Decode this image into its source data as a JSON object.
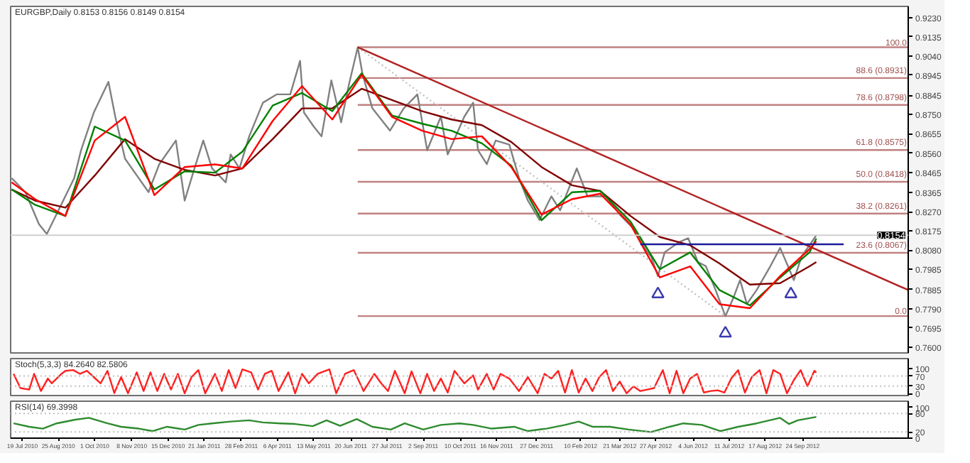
{
  "chart_data": [
    {
      "type": "line",
      "title": "EURGBP,Daily  0.8153 0.8156 0.8149 0.8154",
      "tick_labels": "y",
      "xlim": [
        "2010-07-07",
        "2013-01-10"
      ],
      "ylim": [
        0.7572,
        0.9285
      ],
      "yticks": [
        {
          "value": 0.923,
          "label": "0.9230"
        },
        {
          "value": 0.9135,
          "label": "0.9135"
        },
        {
          "value": 0.904,
          "label": "0.9040"
        },
        {
          "value": 0.8945,
          "label": "0.8945"
        },
        {
          "value": 0.8845,
          "label": "0.8845"
        },
        {
          "value": 0.875,
          "label": "0.8750"
        },
        {
          "value": 0.8655,
          "label": "0.8655"
        },
        {
          "value": 0.856,
          "label": "0.8560"
        },
        {
          "value": 0.8465,
          "label": "0.8465"
        },
        {
          "value": 0.8365,
          "label": "0.8365"
        },
        {
          "value": 0.827,
          "label": "0.8270"
        },
        {
          "value": 0.8175,
          "label": "0.8175"
        },
        {
          "value": 0.808,
          "label": "0.8080"
        },
        {
          "value": 0.7985,
          "label": "0.7985"
        },
        {
          "value": 0.7885,
          "label": "0.7885"
        },
        {
          "value": 0.779,
          "label": "0.7790"
        },
        {
          "value": 0.7695,
          "label": "0.7695"
        },
        {
          "value": 0.76,
          "label": "0.7600"
        }
      ],
      "ref_lines": [
        {
          "axis": "y",
          "value": 0.8154,
          "label": "0.8154",
          "color": "#d0d0d0"
        }
      ],
      "series": [
        {
          "name": "100.0",
          "color": "#c08080",
          "x": [
            "2011-06-27",
            "2013-01-10"
          ],
          "values": [
            0.9083,
            0.9083
          ]
        },
        {
          "name": "88.6 (0.8931)",
          "color": "#c08080",
          "x": [
            "2011-06-27",
            "2013-01-10"
          ],
          "values": [
            0.8931,
            0.8931
          ]
        },
        {
          "name": "78.6 (0.8798)",
          "color": "#c08080",
          "x": [
            "2011-06-27",
            "2013-01-10"
          ],
          "values": [
            0.8798,
            0.8798
          ]
        },
        {
          "name": "61.8 (0.8575)",
          "color": "#c08080",
          "x": [
            "2011-06-27",
            "2013-01-10"
          ],
          "values": [
            0.8575,
            0.8575
          ]
        },
        {
          "name": "50.0 (0.8418)",
          "color": "#c08080",
          "x": [
            "2011-06-27",
            "2013-01-10"
          ],
          "values": [
            0.8418,
            0.8418
          ]
        },
        {
          "name": "38.2 (0.8261)",
          "color": "#c08080",
          "x": [
            "2011-06-27",
            "2013-01-10"
          ],
          "values": [
            0.8261,
            0.8261
          ]
        },
        {
          "name": "23.6 (0.8067)",
          "color": "#c08080",
          "x": [
            "2011-06-27",
            "2013-01-10"
          ],
          "values": [
            0.8067,
            0.8067
          ]
        },
        {
          "name": "0.0",
          "color": "#c08080",
          "x": [
            "2011-06-27",
            "2013-01-10"
          ],
          "values": [
            0.7754,
            0.7754
          ]
        },
        {
          "color": "#c0c0c0",
          "line_style": "dotted",
          "x": [
            "2011-06-27",
            "2012-07-07"
          ],
          "values": [
            0.9083,
            0.7754
          ]
        },
        {
          "color": "#808080",
          "x": [
            "2010-07-08",
            "2010-07-22",
            "2010-08-05",
            "2010-08-13",
            "2010-08-27",
            "2010-09-10",
            "2010-09-17",
            "2010-09-30",
            "2010-10-15",
            "2010-10-22",
            "2010-11-01",
            "2010-11-15",
            "2010-11-25",
            "2010-12-06",
            "2010-12-23",
            "2011-01-01",
            "2011-01-11",
            "2011-01-20",
            "2011-01-29",
            "2011-02-12",
            "2011-02-17",
            "2011-02-26",
            "2011-03-08",
            "2011-03-22",
            "2011-04-05",
            "2011-04-19",
            "2011-04-29",
            "2011-05-03",
            "2011-05-13",
            "2011-05-21",
            "2011-05-31",
            "2011-06-10",
            "2011-06-18",
            "2011-06-27",
            "2011-07-02",
            "2011-07-12",
            "2011-07-30",
            "2011-08-13",
            "2011-08-27",
            "2011-09-06",
            "2011-09-20",
            "2011-09-27",
            "2011-10-14",
            "2011-10-23",
            "2011-10-28",
            "2011-11-06",
            "2011-11-15",
            "2011-11-29",
            "2011-12-09",
            "2011-12-18",
            "2011-12-30",
            "2012-01-11",
            "2012-01-20",
            "2012-02-06",
            "2012-02-17",
            "2012-03-07",
            "2012-03-21",
            "2012-04-04",
            "2012-04-18",
            "2012-04-22",
            "2012-04-29",
            "2012-05-06",
            "2012-05-20",
            "2012-05-30",
            "2012-06-09",
            "2012-06-17",
            "2012-06-27",
            "2012-07-07",
            "2012-07-15",
            "2012-07-22",
            "2012-07-29",
            "2012-08-08",
            "2012-08-22",
            "2012-09-01",
            "2012-09-09",
            "2012-09-15",
            "2012-09-23",
            "2012-10-03",
            "2012-10-08"
          ],
          "values": [
            0.8436,
            0.8367,
            0.8208,
            0.816,
            0.8298,
            0.8436,
            0.8574,
            0.876,
            0.8912,
            0.874,
            0.8532,
            0.8436,
            0.8367,
            0.8505,
            0.8622,
            0.8325,
            0.8484,
            0.8622,
            0.8484,
            0.8415,
            0.8553,
            0.8484,
            0.8643,
            0.8809,
            0.885,
            0.885,
            0.9016,
            0.876,
            0.8691,
            0.8643,
            0.8919,
            0.8712,
            0.8899,
            0.9083,
            0.8947,
            0.8781,
            0.8671,
            0.8781,
            0.885,
            0.8574,
            0.874,
            0.8553,
            0.874,
            0.8809,
            0.8574,
            0.8505,
            0.8622,
            0.8602,
            0.8436,
            0.8325,
            0.8229,
            0.8346,
            0.8277,
            0.8484,
            0.8346,
            0.8346,
            0.8256,
            0.8187,
            0.807,
            0.8049,
            0.7952,
            0.807,
            0.8118,
            0.8139,
            0.8021,
            0.8001,
            0.7883,
            0.7754,
            0.7842,
            0.7932,
            0.7814,
            0.7883,
            0.8001,
            0.8091,
            0.8001,
            0.7932,
            0.8049,
            0.8118,
            0.8154
          ]
        },
        {
          "color": "#800000",
          "x": [
            "2010-07-08",
            "2010-08-01",
            "2010-09-01",
            "2010-10-01",
            "2010-11-01",
            "2010-12-01",
            "2011-01-01",
            "2011-02-01",
            "2011-03-01",
            "2011-04-01",
            "2011-05-01",
            "2011-06-01",
            "2011-07-01",
            "2011-08-01",
            "2011-09-01",
            "2011-10-01",
            "2011-11-01",
            "2011-12-01",
            "2012-01-01",
            "2012-02-01",
            "2012-03-01",
            "2012-04-01",
            "2012-05-01",
            "2012-06-01",
            "2012-07-01",
            "2012-08-01",
            "2012-09-01",
            "2012-10-01",
            "2012-10-08"
          ],
          "values": [
            0.838,
            0.8325,
            0.829,
            0.8449,
            0.8629,
            0.8532,
            0.8477,
            0.8449,
            0.8484,
            0.8629,
            0.8781,
            0.8781,
            0.8878,
            0.8822,
            0.8767,
            0.8726,
            0.8698,
            0.8615,
            0.8491,
            0.8401,
            0.8373,
            0.8249,
            0.8145,
            0.8104,
            0.8014,
            0.791,
            0.7917,
            0.8,
            0.8021
          ]
        },
        {
          "color": "#008000",
          "x": [
            "2010-07-08",
            "2010-08-01",
            "2010-09-01",
            "2010-10-01",
            "2010-11-01",
            "2010-12-01",
            "2011-01-01",
            "2011-02-01",
            "2011-03-01",
            "2011-04-01",
            "2011-05-01",
            "2011-06-01",
            "2011-07-01",
            "2011-08-01",
            "2011-09-01",
            "2011-10-01",
            "2011-11-01",
            "2011-12-01",
            "2012-01-01",
            "2012-02-01",
            "2012-03-01",
            "2012-04-01",
            "2012-05-01",
            "2012-06-01",
            "2012-07-01",
            "2012-08-01",
            "2012-09-01",
            "2012-10-01",
            "2012-10-08"
          ],
          "values": [
            0.838,
            0.8304,
            0.8249,
            0.8691,
            0.8622,
            0.838,
            0.847,
            0.8463,
            0.8567,
            0.8795,
            0.8857,
            0.8767,
            0.8954,
            0.8746,
            0.8705,
            0.867,
            0.8608,
            0.8498,
            0.8228,
            0.8366,
            0.8373,
            0.8221,
            0.7986,
            0.8069,
            0.7883,
            0.7807,
            0.7945,
            0.8069,
            0.8138
          ]
        },
        {
          "color": "#ff0000",
          "x": [
            "2010-07-08",
            "2010-08-01",
            "2010-09-01",
            "2010-10-01",
            "2010-11-01",
            "2010-12-01",
            "2011-01-01",
            "2011-02-01",
            "2011-03-01",
            "2011-04-01",
            "2011-05-01",
            "2011-06-01",
            "2011-07-01",
            "2011-08-01",
            "2011-09-01",
            "2011-10-01",
            "2011-11-01",
            "2011-12-01",
            "2012-01-01",
            "2012-02-01",
            "2012-03-01",
            "2012-04-01",
            "2012-05-01",
            "2012-06-01",
            "2012-07-01",
            "2012-08-01",
            "2012-09-01",
            "2012-10-01",
            "2012-10-08"
          ],
          "values": [
            0.8415,
            0.8332,
            0.8249,
            0.8622,
            0.8739,
            0.8352,
            0.8491,
            0.8504,
            0.8484,
            0.8719,
            0.8891,
            0.8726,
            0.8947,
            0.8739,
            0.867,
            0.8629,
            0.8643,
            0.8491,
            0.8256,
            0.8332,
            0.8359,
            0.8207,
            0.7945,
            0.8,
            0.7813,
            0.7793,
            0.7952,
            0.8085,
            0.8124
          ]
        },
        {
          "color": "#b22222",
          "x": [
            "2011-06-27",
            "2013-01-10"
          ],
          "values": [
            0.9083,
            0.7883
          ]
        },
        {
          "color": "#1a1a9a",
          "x": [
            "2012-04-11",
            "2012-11-05"
          ],
          "values": [
            0.8109,
            0.8109
          ]
        },
        {
          "type": "scatter",
          "marker": "triangle",
          "color": "#3a3ab0",
          "x": [
            "2012-04-29",
            "2012-07-07",
            "2012-09-12"
          ],
          "values": [
            0.7863,
            0.7669,
            0.7863
          ]
        }
      ]
    },
    {
      "type": "line",
      "title": "Stoch(5,3,3) 84.2640 82.5806",
      "tick_labels": "y",
      "xlim": [
        "2010-07-07",
        "2013-01-10"
      ],
      "ylim": [
        -8,
        140
      ],
      "yticks": [
        100,
        70,
        30,
        0
      ],
      "ref_lines": [
        {
          "axis": "y",
          "value": 70,
          "color": "#c0c0c0",
          "line_style": "dotted"
        },
        {
          "axis": "y",
          "value": 30,
          "color": "#c0c0c0",
          "line_style": "dotted"
        }
      ],
      "series": [
        {
          "color": "#ff2020",
          "x": [
            "2010-07-10",
            "2010-07-17",
            "2010-07-26",
            "2010-07-31",
            "2010-08-07",
            "2010-08-14",
            "2010-08-18",
            "2010-08-28",
            "2010-09-01",
            "2010-09-09",
            "2010-09-16",
            "2010-09-23",
            "2010-09-30",
            "2010-10-07",
            "2010-10-14",
            "2010-10-21",
            "2010-10-28",
            "2010-11-04",
            "2010-11-13",
            "2010-11-20",
            "2010-11-27",
            "2010-12-04",
            "2010-12-11",
            "2010-12-18",
            "2010-12-25",
            "2011-01-01",
            "2011-01-08",
            "2011-01-15",
            "2011-01-22",
            "2011-02-01",
            "2011-02-08",
            "2011-02-15",
            "2011-02-22",
            "2011-03-01",
            "2011-03-10",
            "2011-03-17",
            "2011-03-24",
            "2011-03-31",
            "2011-04-07",
            "2011-04-17",
            "2011-04-24",
            "2011-05-01",
            "2011-05-08",
            "2011-05-17",
            "2011-05-29",
            "2011-06-05",
            "2011-06-14",
            "2011-06-23",
            "2011-07-03",
            "2011-07-14",
            "2011-07-21",
            "2011-07-28",
            "2011-08-04",
            "2011-08-14",
            "2011-08-21",
            "2011-08-30",
            "2011-09-06",
            "2011-09-13",
            "2011-09-20",
            "2011-09-27",
            "2011-10-04",
            "2011-10-14",
            "2011-10-23",
            "2011-10-28",
            "2011-11-06",
            "2011-11-13",
            "2011-11-20",
            "2011-11-29",
            "2011-12-09",
            "2011-12-18",
            "2011-12-28",
            "2012-01-04",
            "2012-01-11",
            "2012-01-18",
            "2012-01-25",
            "2012-02-01",
            "2012-02-08",
            "2012-02-15",
            "2012-02-22",
            "2012-02-29",
            "2012-03-07",
            "2012-03-14",
            "2012-03-21",
            "2012-03-28",
            "2012-04-04",
            "2012-04-11",
            "2012-04-18",
            "2012-04-25",
            "2012-05-04",
            "2012-05-11",
            "2012-05-18",
            "2012-05-25",
            "2012-06-01",
            "2012-06-08",
            "2012-06-15",
            "2012-06-22",
            "2012-06-29",
            "2012-07-06",
            "2012-07-13",
            "2012-07-20",
            "2012-07-27",
            "2012-08-03",
            "2012-08-11",
            "2012-08-18",
            "2012-08-25",
            "2012-09-01",
            "2012-09-08",
            "2012-09-15",
            "2012-09-22",
            "2012-09-29",
            "2012-10-06",
            "2012-10-08"
          ],
          "values": [
            79,
            22,
            16,
            79,
            10,
            60,
            41,
            79,
            91,
            94,
            79,
            91,
            66,
            41,
            91,
            2,
            66,
            1,
            85,
            10,
            85,
            10,
            79,
            16,
            79,
            1,
            66,
            94,
            1,
            79,
            10,
            94,
            22,
            97,
            85,
            16,
            79,
            91,
            10,
            85,
            1,
            79,
            41,
            79,
            97,
            1,
            79,
            94,
            10,
            79,
            41,
            10,
            91,
            1,
            89,
            1,
            79,
            10,
            60,
            4,
            91,
            41,
            73,
            16,
            79,
            16,
            79,
            60,
            10,
            66,
            1,
            79,
            60,
            91,
            4,
            94,
            4,
            60,
            10,
            66,
            94,
            10,
            48,
            1,
            29,
            10,
            16,
            22,
            94,
            1,
            91,
            1,
            60,
            79,
            4,
            10,
            13,
            4,
            60,
            94,
            4,
            66,
            94,
            1,
            94,
            79,
            1,
            54,
            94,
            29,
            91,
            84
          ]
        }
      ]
    },
    {
      "type": "line",
      "title": "RSI(14) 69.3998",
      "xlim": [
        "2010-07-07",
        "2013-01-10"
      ],
      "ylim": [
        0,
        120
      ],
      "yticks": [
        100,
        80,
        20,
        0
      ],
      "xticks": [
        {
          "value": "2010-07-19",
          "label": "19 Jul 2010"
        },
        {
          "value": "2010-08-25",
          "label": "25 Aug 2010"
        },
        {
          "value": "2010-10-01",
          "label": "1 Oct 2010"
        },
        {
          "value": "2010-11-08",
          "label": "8 Nov 2010"
        },
        {
          "value": "2010-12-15",
          "label": "15 Dec 2010"
        },
        {
          "value": "2011-01-21",
          "label": "21 Jan 2011"
        },
        {
          "value": "2011-02-28",
          "label": "28 Feb 2011"
        },
        {
          "value": "2011-04-06",
          "label": "6 Apr 2011"
        },
        {
          "value": "2011-05-13",
          "label": "13 May 2011"
        },
        {
          "value": "2011-06-20",
          "label": "20 Jun 2011"
        },
        {
          "value": "2011-07-27",
          "label": "27 Jul 2011"
        },
        {
          "value": "2011-09-02",
          "label": "2 Sep 2011"
        },
        {
          "value": "2011-10-10",
          "label": "10 Oct 2011"
        },
        {
          "value": "2011-11-16",
          "label": "16 Nov 2011"
        },
        {
          "value": "2011-12-27",
          "label": "27 Dec 2011"
        },
        {
          "value": "2012-02-10",
          "label": "10 Feb 2012"
        },
        {
          "value": "2012-03-21",
          "label": "21 Mar 2012"
        },
        {
          "value": "2012-04-27",
          "label": "27 Apr 2012"
        },
        {
          "value": "2012-06-04",
          "label": "4 Jun 2012"
        },
        {
          "value": "2012-07-11",
          "label": "11 Jul 2012"
        },
        {
          "value": "2012-08-17",
          "label": "17 Aug 2012"
        },
        {
          "value": "2012-09-24",
          "label": "24 Sep 2012"
        }
      ],
      "ref_lines": [
        {
          "axis": "y",
          "value": 80,
          "color": "#c0c0c0",
          "line_style": "dotted"
        },
        {
          "axis": "y",
          "value": 20,
          "color": "#c0c0c0",
          "line_style": "dotted"
        }
      ],
      "series": [
        {
          "color": "#2e8b2e",
          "x": [
            "2010-07-10",
            "2010-07-26",
            "2010-08-09",
            "2010-08-23",
            "2010-09-11",
            "2010-09-25",
            "2010-10-14",
            "2010-10-28",
            "2010-11-15",
            "2010-11-29",
            "2010-12-14",
            "2011-01-01",
            "2011-01-15",
            "2011-01-29",
            "2011-02-17",
            "2011-03-08",
            "2011-03-22",
            "2011-04-09",
            "2011-04-24",
            "2011-05-12",
            "2011-05-26",
            "2011-06-09",
            "2011-06-26",
            "2011-07-12",
            "2011-07-31",
            "2011-08-14",
            "2011-09-02",
            "2011-09-20",
            "2011-10-09",
            "2011-10-23",
            "2011-11-11",
            "2011-12-04",
            "2011-12-18",
            "2012-01-06",
            "2012-01-25",
            "2012-02-08",
            "2012-02-22",
            "2012-03-11",
            "2012-03-30",
            "2012-04-22",
            "2012-05-11",
            "2012-05-25",
            "2012-06-13",
            "2012-07-02",
            "2012-07-20",
            "2012-08-08",
            "2012-09-01",
            "2012-09-10",
            "2012-09-19",
            "2012-10-08"
          ],
          "values": [
            48,
            37,
            31,
            48,
            60,
            66,
            48,
            37,
            31,
            23,
            37,
            28,
            43,
            48,
            54,
            58,
            51,
            48,
            46,
            39,
            58,
            40,
            62,
            37,
            28,
            48,
            28,
            43,
            48,
            43,
            31,
            37,
            23,
            31,
            43,
            54,
            37,
            37,
            28,
            20,
            37,
            48,
            43,
            23,
            37,
            48,
            66,
            46,
            58,
            69
          ]
        }
      ]
    }
  ]
}
